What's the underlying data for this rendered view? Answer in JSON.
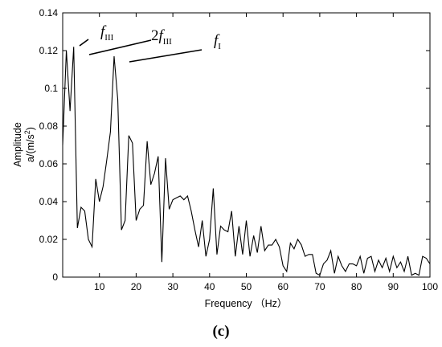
{
  "chart_data": {
    "type": "line",
    "xlabel": "Frequency （Hz）",
    "ylabel_line1": "Amplitude",
    "ylabel_line2": "a/(m/s",
    "ylabel_sup": "2",
    "ylabel_close": ")",
    "xlim": [
      0,
      100
    ],
    "ylim": [
      0,
      0.14
    ],
    "xticks": [
      10,
      20,
      30,
      40,
      50,
      60,
      70,
      80,
      90,
      100
    ],
    "yticks": [
      0,
      0.02,
      0.04,
      0.06,
      0.08,
      0.1,
      0.12,
      0.14
    ],
    "xtick_labels": [
      "10",
      "20",
      "30",
      "40",
      "50",
      "60",
      "70",
      "80",
      "90",
      "100"
    ],
    "ytick_labels": [
      "0",
      "0.02",
      "0.04",
      "0.06",
      "0.08",
      "0.1",
      "0.12",
      "0.14"
    ],
    "grid": false,
    "series": [
      {
        "x": [
          0,
          1,
          2,
          3,
          4,
          5,
          6,
          7,
          8,
          9,
          10,
          11,
          12,
          13,
          14,
          15,
          16,
          17,
          18,
          19,
          20,
          21,
          22,
          23,
          24,
          25,
          26,
          27,
          28,
          29,
          30,
          31,
          32,
          33,
          34,
          35,
          36,
          37,
          38,
          39,
          40,
          41,
          42,
          43,
          44,
          45,
          46,
          47,
          48,
          49,
          50,
          51,
          52,
          53,
          54,
          55,
          56,
          57,
          58,
          59,
          60,
          61,
          62,
          63,
          64,
          65,
          66,
          67,
          68,
          69,
          70,
          71,
          72,
          73,
          74,
          75,
          76,
          77,
          78,
          79,
          80,
          81,
          82,
          83,
          84,
          85,
          86,
          87,
          88,
          89,
          90,
          91,
          92,
          93,
          94,
          95,
          96,
          97,
          98,
          99,
          100
        ],
        "values": [
          0.07,
          0.12,
          0.088,
          0.122,
          0.026,
          0.037,
          0.035,
          0.02,
          0.016,
          0.052,
          0.04,
          0.048,
          0.062,
          0.077,
          0.117,
          0.094,
          0.025,
          0.03,
          0.075,
          0.071,
          0.03,
          0.036,
          0.038,
          0.072,
          0.049,
          0.055,
          0.064,
          0.008,
          0.063,
          0.036,
          0.041,
          0.042,
          0.043,
          0.041,
          0.043,
          0.035,
          0.025,
          0.016,
          0.03,
          0.011,
          0.02,
          0.047,
          0.012,
          0.027,
          0.025,
          0.024,
          0.035,
          0.011,
          0.027,
          0.012,
          0.03,
          0.011,
          0.022,
          0.013,
          0.027,
          0.014,
          0.017,
          0.017,
          0.02,
          0.016,
          0.006,
          0.003,
          0.018,
          0.015,
          0.02,
          0.017,
          0.011,
          0.012,
          0.012,
          0.002,
          0.001,
          0.007,
          0.009,
          0.014,
          0.002,
          0.011,
          0.006,
          0.003,
          0.007,
          0.007,
          0.006,
          0.011,
          0.002,
          0.01,
          0.011,
          0.003,
          0.009,
          0.005,
          0.01,
          0.003,
          0.011,
          0.005,
          0.008,
          0.003,
          0.011,
          0.001,
          0.002,
          0.001,
          0.011,
          0.01,
          0.007
        ]
      }
    ],
    "annotations": [
      {
        "id": "f3",
        "prefix": "",
        "letter": "f",
        "subscript": "III"
      },
      {
        "id": "2f3",
        "prefix": "2",
        "letter": "f",
        "subscript": "III"
      },
      {
        "id": "f1",
        "prefix": "",
        "letter": "f",
        "subscript": "I"
      }
    ]
  },
  "caption": "(c)"
}
